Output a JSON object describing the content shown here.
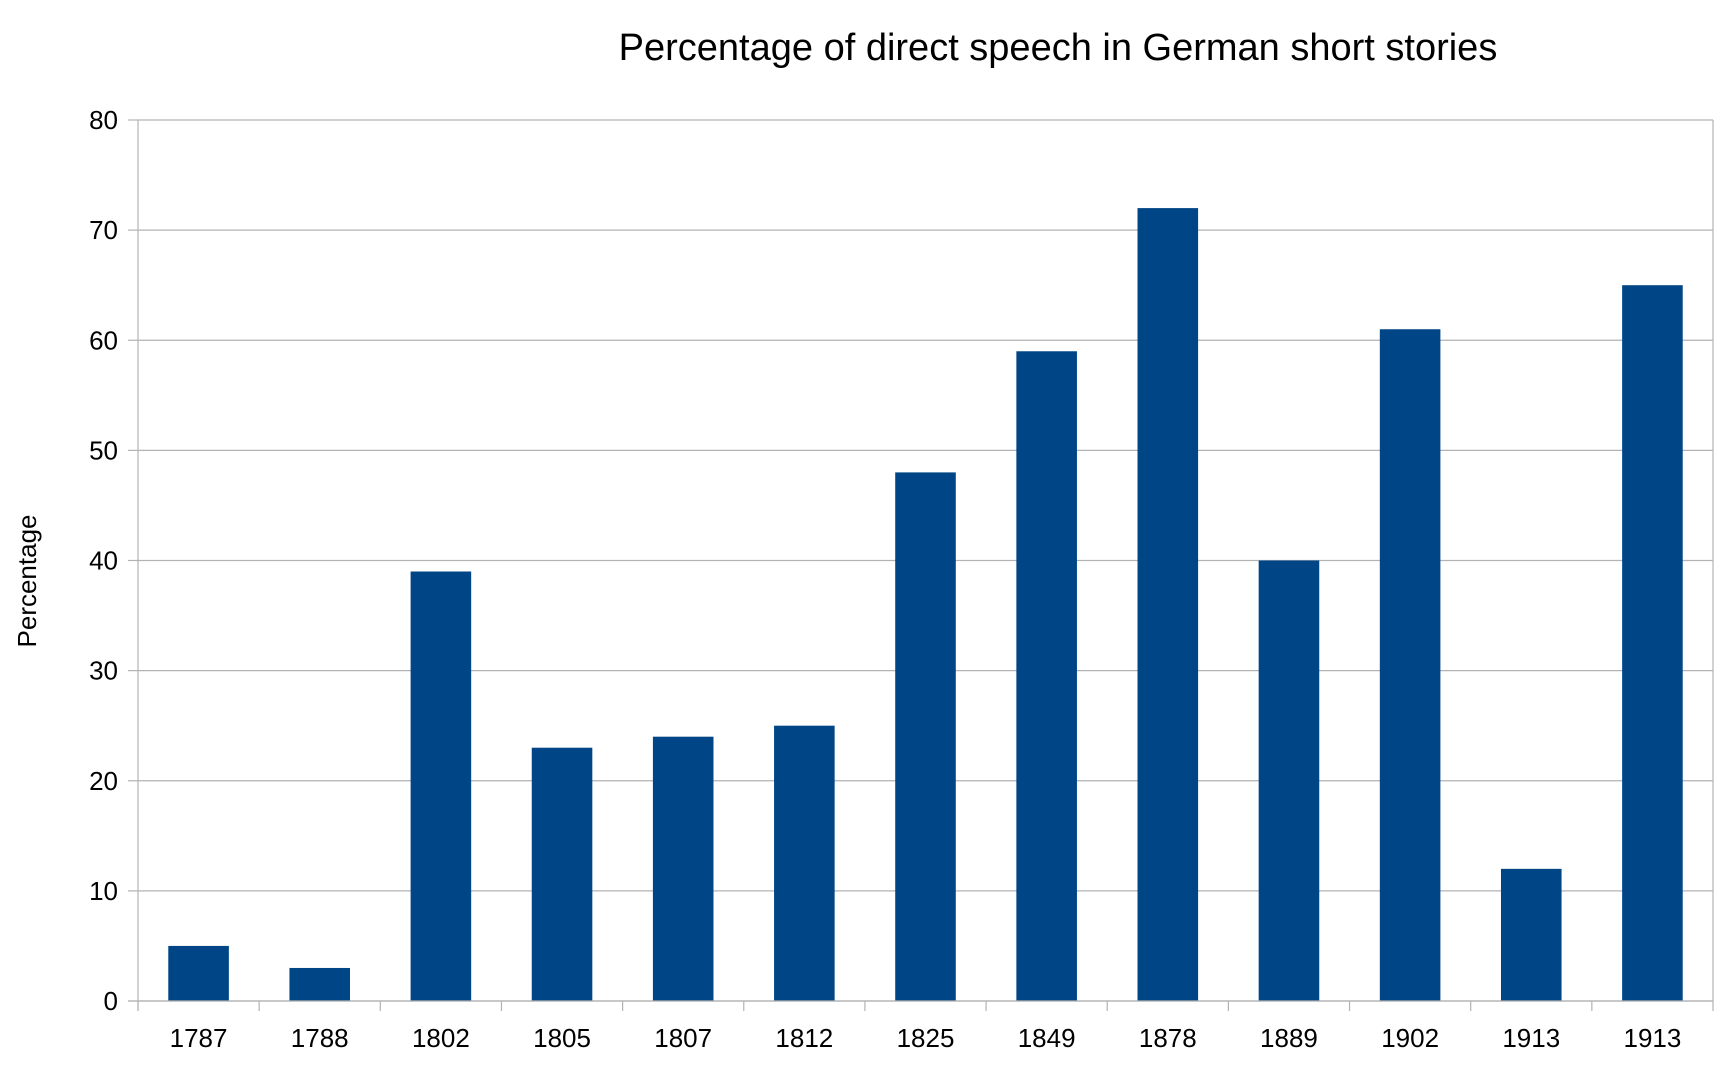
{
  "chart_data": {
    "type": "bar",
    "title": "Percentage of direct speech in German short stories",
    "xlabel": "",
    "ylabel": "Percentage",
    "categories": [
      "1787",
      "1788",
      "1802",
      "1805",
      "1807",
      "1812",
      "1825",
      "1849",
      "1878",
      "1889",
      "1902",
      "1913",
      "1913"
    ],
    "values": [
      5,
      3,
      39,
      23,
      24,
      25,
      48,
      59,
      72,
      40,
      61,
      12,
      65
    ],
    "ylim": [
      0,
      80
    ],
    "yticks": [
      "0",
      "10",
      "20",
      "30",
      "40",
      "50",
      "60",
      "70",
      "80"
    ],
    "grid": true,
    "legend": "none",
    "bar_color": "#004586",
    "grid_color": "#b3b3b3"
  }
}
